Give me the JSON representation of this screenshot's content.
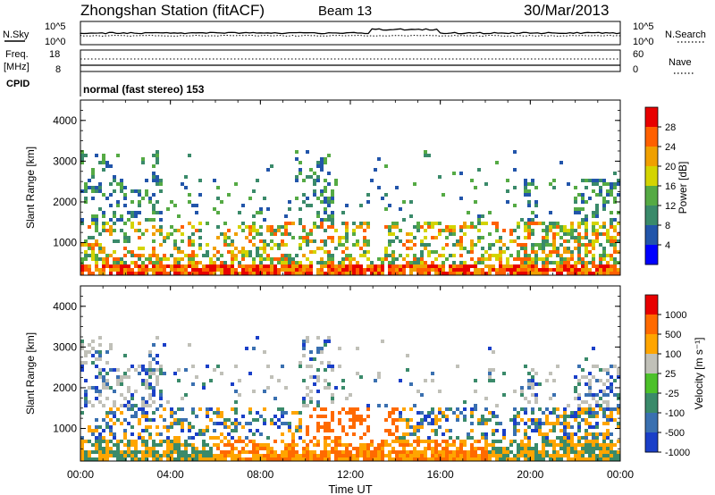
{
  "header": {
    "station": "Zhongshan Station (fitACF)",
    "beam": "Beam 13",
    "date": "30/Mar/2013"
  },
  "nsky_panel": {
    "left_label": "N.Sky",
    "right_label": "N.Search",
    "left_ticks": [
      "10^5",
      "10^0"
    ],
    "right_ticks": [
      "10^5",
      "10^0"
    ]
  },
  "freq_panel": {
    "left_label_1": "Freq.",
    "left_label_2": "[MHz]",
    "right_label": "Nave",
    "left_ticks": [
      "18",
      "8"
    ],
    "right_ticks": [
      "60",
      "0"
    ]
  },
  "cpid": {
    "label": "CPID",
    "value": "normal (fast stereo) 153"
  },
  "chart_data": [
    {
      "type": "heatmap",
      "name": "power",
      "ylabel": "Slant Range [km]",
      "xlabel": "",
      "yticks": [
        "1000",
        "2000",
        "3000",
        "4000"
      ],
      "ylim": [
        200,
        4500
      ],
      "colorbar_label": "Power [dB]",
      "colorbar_ticks": [
        "28",
        "24",
        "20",
        "16",
        "12",
        "8",
        "4"
      ],
      "colors": [
        "#0000ff",
        "#2255aa",
        "#3a8a6a",
        "#55aa44",
        "#d4d400",
        "#f0a000",
        "#ff6000",
        "#e80000"
      ]
    },
    {
      "type": "heatmap",
      "name": "velocity",
      "ylabel": "Slant Range [km]",
      "xlabel": "Time UT",
      "yticks": [
        "1000",
        "2000",
        "3000",
        "4000"
      ],
      "ylim": [
        200,
        4500
      ],
      "colorbar_label": "Velocity [m s⁻¹]",
      "colorbar_ticks": [
        "1000",
        "500",
        "100",
        "25",
        "-25",
        "-100",
        "-500",
        "-1000"
      ],
      "colors": [
        "#1a3fc8",
        "#3a70b0",
        "#3a8a6a",
        "#4cc12a",
        "#c0c0b8",
        "#ffa500",
        "#ff6a00",
        "#e80000"
      ]
    }
  ],
  "xaxis": {
    "ticks": [
      "00:00",
      "04:00",
      "08:00",
      "12:00",
      "16:00",
      "20:00",
      "00:00"
    ],
    "label": "Time UT"
  }
}
